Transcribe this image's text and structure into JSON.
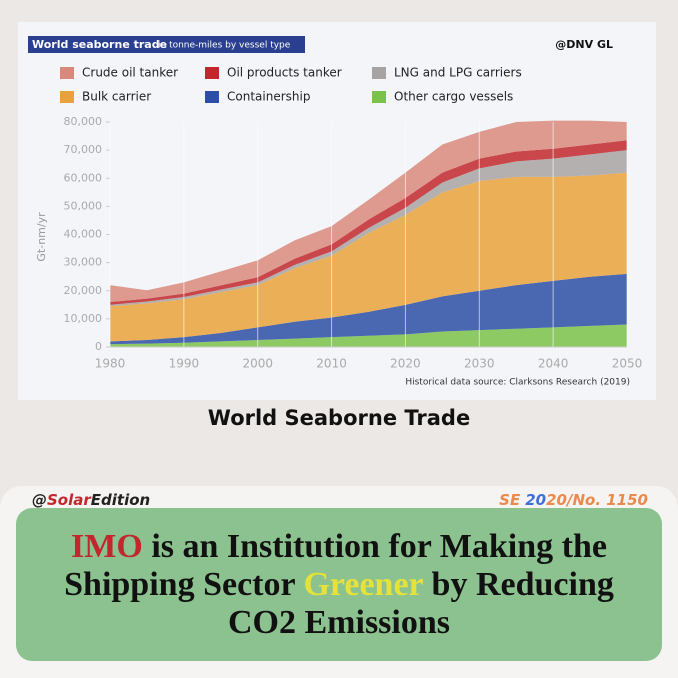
{
  "chart_data": {
    "type": "stacked_area",
    "title": "World seaborne trade",
    "subtitle": "in tonne-miles by vessel type",
    "watermark": "@DNV GL",
    "y_label": "Gt-nm/yr",
    "source": "Historical data source: Clarksons Research (2019)",
    "x": [
      1980,
      1985,
      1990,
      1995,
      2000,
      2005,
      2010,
      2015,
      2020,
      2025,
      2030,
      2035,
      2040,
      2045,
      2050
    ],
    "xlim": [
      1980,
      2050
    ],
    "xticks": [
      1980,
      1990,
      2000,
      2010,
      2020,
      2030,
      2040,
      2050
    ],
    "ylim": [
      0,
      80000
    ],
    "yticks": [
      0,
      {
        "value": 10000,
        "label": "10,000"
      },
      {
        "value": 20000,
        "label": "20,000"
      },
      {
        "value": 30000,
        "label": "30,000"
      },
      {
        "value": 40000,
        "label": "40,000"
      },
      {
        "value": 50000,
        "label": "50,000"
      },
      {
        "value": 60000,
        "label": "60,000"
      },
      {
        "value": 70000,
        "label": "70,000"
      },
      {
        "value": 80000,
        "label": "80,000"
      }
    ],
    "grid": true,
    "series": [
      {
        "name": "Crude oil tanker",
        "color": "#d9897c",
        "values": [
          6000,
          3000,
          4000,
          5000,
          6000,
          6500,
          6500,
          7000,
          9000,
          10000,
          9500,
          10500,
          10000,
          8500,
          6500
        ]
      },
      {
        "name": "Oil products tanker",
        "color": "#c1272d",
        "values": [
          1000,
          1000,
          1200,
          1500,
          1800,
          2200,
          2500,
          3000,
          3500,
          3500,
          3500,
          3500,
          3500,
          3500,
          3500
        ]
      },
      {
        "name": "LNG and LPG carriers",
        "color": "#a8a3a3",
        "values": [
          500,
          700,
          800,
          900,
          1000,
          1200,
          1500,
          1800,
          2500,
          3500,
          4500,
          5500,
          6500,
          7500,
          8000
        ]
      },
      {
        "name": "Bulk carrier",
        "color": "#e9a23b",
        "values": [
          12500,
          13000,
          13500,
          14500,
          15000,
          19000,
          22000,
          28000,
          32000,
          37000,
          39000,
          38500,
          37000,
          36000,
          36000
        ]
      },
      {
        "name": "Containership",
        "color": "#2c4ea6",
        "values": [
          1000,
          1300,
          2000,
          3000,
          4500,
          6000,
          7000,
          8500,
          10500,
          12500,
          14000,
          15500,
          16500,
          17500,
          18000
        ]
      },
      {
        "name": "Other cargo vessels",
        "color": "#7bc24a",
        "values": [
          1000,
          1200,
          1500,
          2000,
          2500,
          3000,
          3500,
          4000,
          4500,
          5500,
          6000,
          6500,
          7000,
          7500,
          8000
        ]
      }
    ]
  },
  "caption": "World Seaborne Trade",
  "handle": [
    "@",
    "Solar",
    "Edition"
  ],
  "issue": [
    "SE",
    "20",
    "20/No. 1150"
  ],
  "headline": [
    "IMO",
    " is an Institution for Making the Shipping Sector ",
    "Greener",
    " by Reducing CO2 Emissions"
  ]
}
